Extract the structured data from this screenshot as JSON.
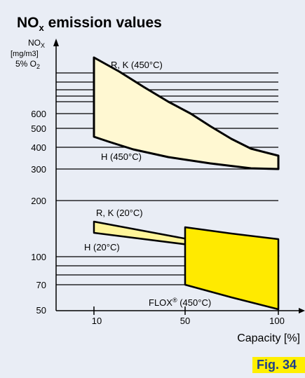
{
  "chart_data": {
    "type": "area",
    "title": {
      "main": "NO",
      "sub": "x",
      "rest": " emission values"
    },
    "ylabel": {
      "l1a": "NO",
      "l1sub": "X",
      "l2": "[mg/m3]",
      "l3a": "5% O",
      "l3sub": "2"
    },
    "xlabel": "Capacity [%]",
    "x_ticks": [
      "10",
      "50",
      "100"
    ],
    "y_ticks": [
      {
        "label": "600",
        "value": 600
      },
      {
        "label": "500",
        "value": 500
      },
      {
        "label": "400",
        "value": 400
      },
      {
        "label": "300",
        "value": 300
      },
      {
        "label": "200",
        "value": 200
      },
      {
        "label": "100",
        "value": 100
      },
      {
        "label": "70",
        "value": 70
      },
      {
        "label": "50",
        "value": 50
      }
    ],
    "series_labels": {
      "rk450": "R, K (450°C)",
      "h450": "H (450°C)",
      "rk20": "R, K (20°C)",
      "h20": "H (20°C)",
      "flox_a": "FLOX",
      "flox_sup": "®",
      "flox_b": " (450°C)"
    },
    "regions": [
      {
        "name": "hot-band",
        "color": "#fff8d2"
      },
      {
        "name": "cold-band",
        "color": "#fff59a"
      },
      {
        "name": "flox-band",
        "color": "#ffea00"
      }
    ],
    "grid": true,
    "y_scale": "log"
  },
  "figure_label": "Fig. 34"
}
